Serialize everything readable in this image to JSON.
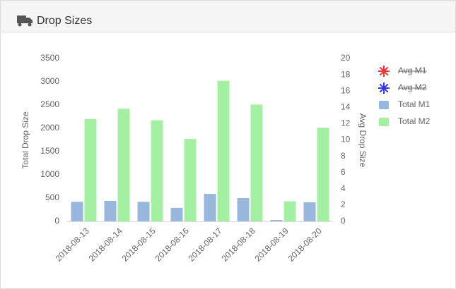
{
  "header": {
    "title": "Drop Sizes"
  },
  "chart_data": {
    "type": "bar",
    "categories": [
      "2018-08-13",
      "2018-08-14",
      "2018-08-15",
      "2018-08-16",
      "2018-08-17",
      "2018-08-18",
      "2018-08-19",
      "2018-08-20"
    ],
    "series": [
      {
        "name": "Avg M1",
        "color": "#ee3333",
        "axis": "y2",
        "hidden": true
      },
      {
        "name": "Avg M2",
        "color": "#3333ee",
        "axis": "y2",
        "hidden": true
      },
      {
        "name": "Total M1",
        "color": "#99b7dd",
        "values": [
          420,
          440,
          420,
          290,
          590,
          500,
          30,
          410
        ]
      },
      {
        "name": "Total M2",
        "color": "#a3f0a3",
        "values": [
          2200,
          2420,
          2170,
          1770,
          3020,
          2510,
          430,
          2010
        ]
      }
    ],
    "ylabel": "Total Drop Size",
    "y2label": "Avg Drop Size",
    "ylim": [
      0,
      3500
    ],
    "yticks": [
      0,
      500,
      1000,
      1500,
      2000,
      2500,
      3000,
      3500
    ],
    "y2lim": [
      0,
      20
    ],
    "y2ticks": [
      0,
      2,
      4,
      6,
      8,
      10,
      12,
      14,
      16,
      18,
      20
    ],
    "grid": false,
    "legend": "right"
  }
}
